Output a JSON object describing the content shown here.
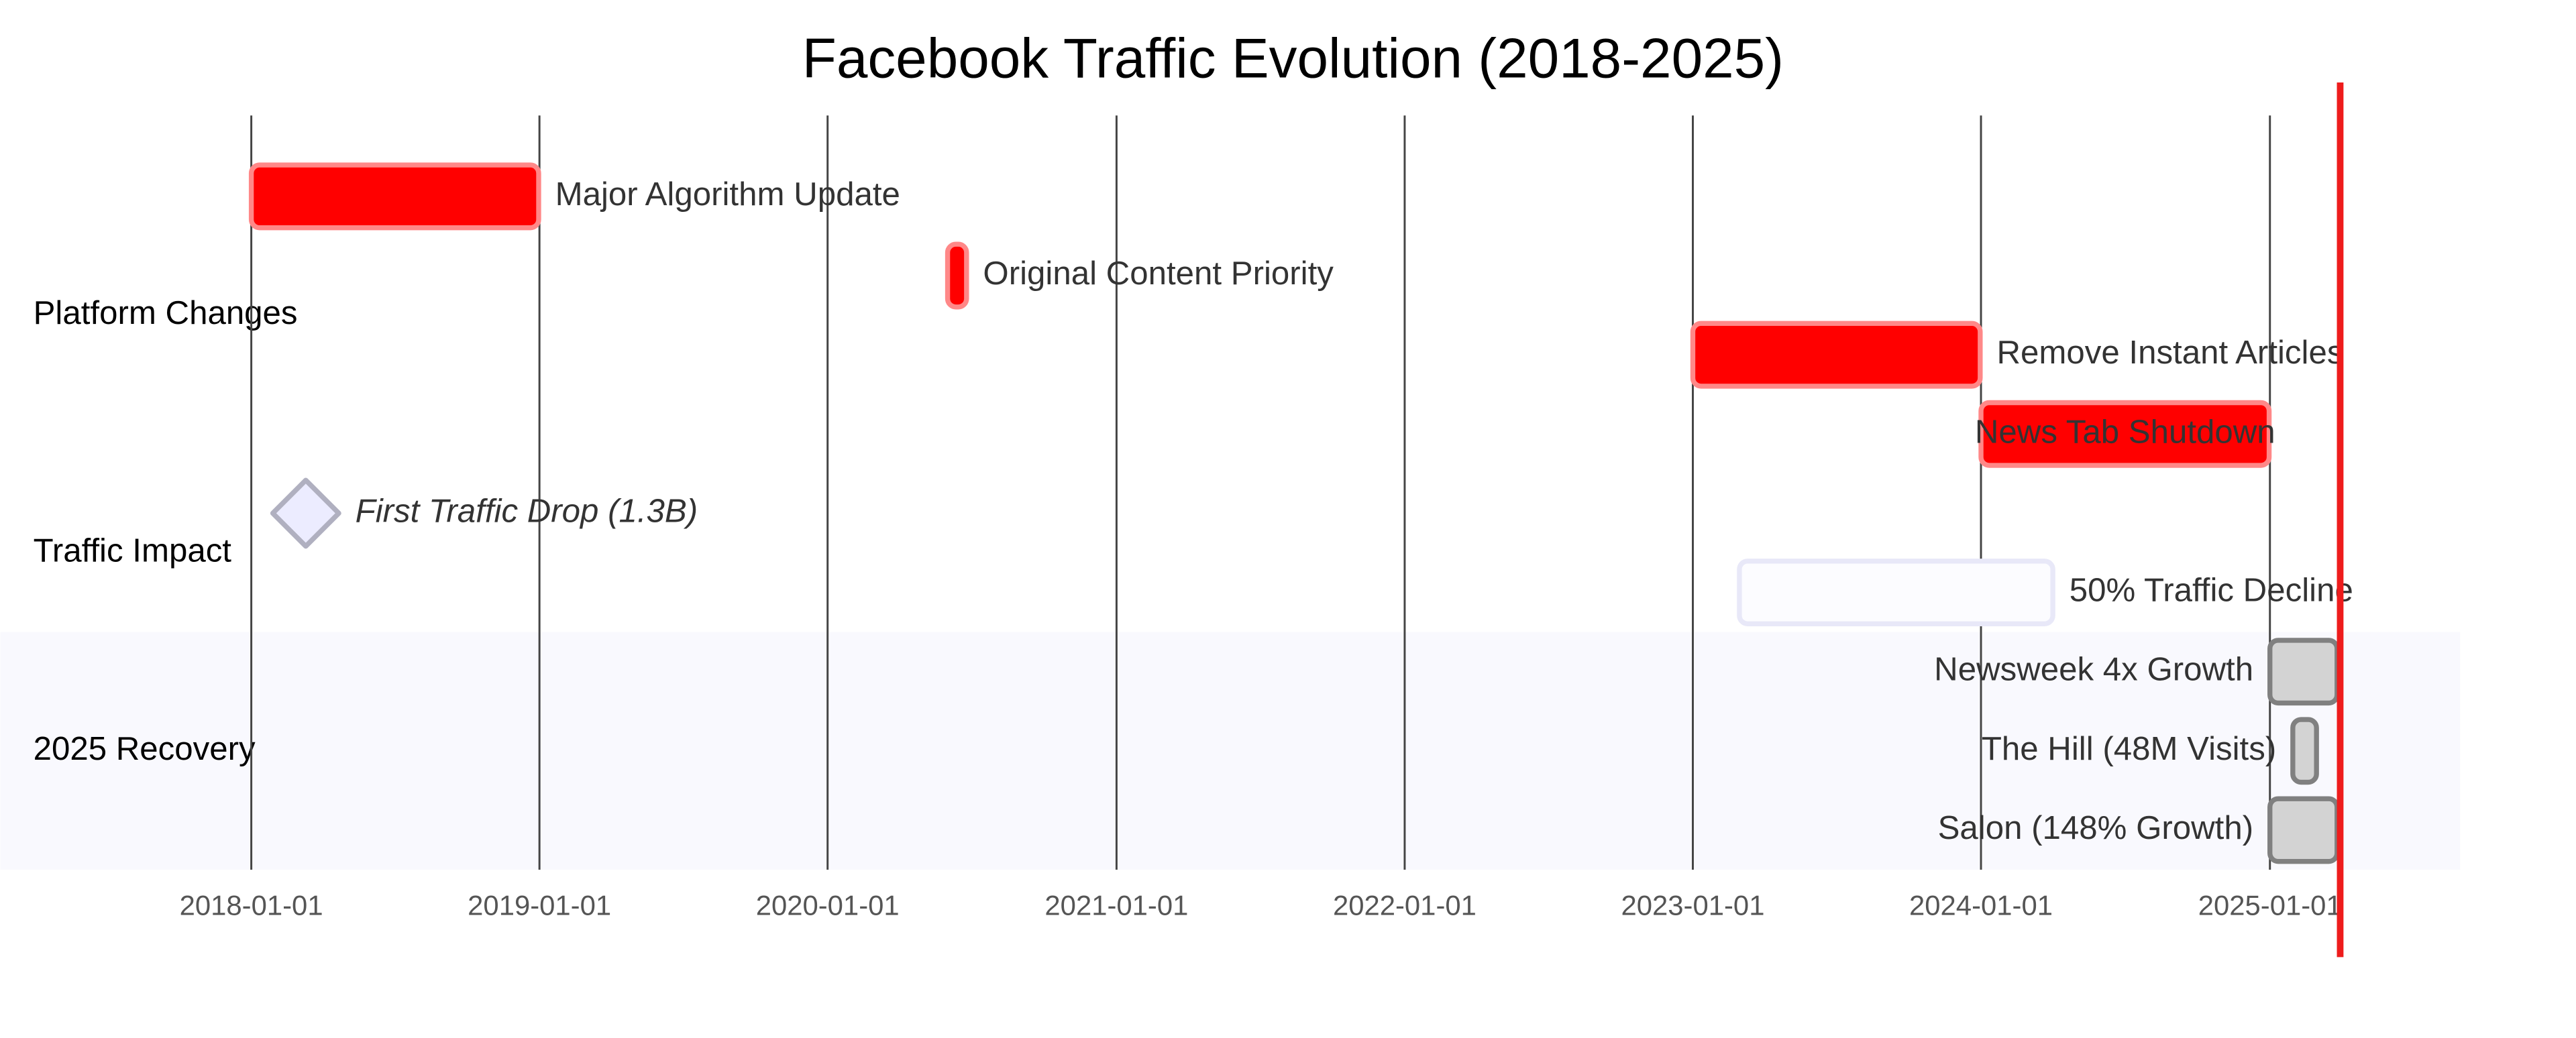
{
  "chart_data": {
    "type": "gantt",
    "title": "Facebook Traffic Evolution (2018-2025)",
    "xlim": [
      "2017-02-17",
      "2025-08-30"
    ],
    "xticks": [
      "2018-01-01",
      "2019-01-01",
      "2020-01-01",
      "2021-01-01",
      "2022-01-01",
      "2023-01-01",
      "2024-01-01",
      "2025-01-01"
    ],
    "today": "2025-03-31",
    "today_color": "#ee1c1c",
    "sections": [
      {
        "name": "Platform Changes",
        "color": "#ffffff",
        "tasks": [
          {
            "name": "Major Algorithm Update",
            "start": "2018-01-01",
            "end": "2018-12-31",
            "status": "crit"
          },
          {
            "name": "Original Content Priority",
            "start": "2020-06-01",
            "end": "2020-06-25",
            "status": "crit"
          },
          {
            "name": "Remove Instant Articles",
            "start": "2023-01-01",
            "end": "2023-12-31",
            "status": "crit"
          },
          {
            "name": "News Tab Shutdown",
            "start": "2024-01-01",
            "end": "2024-12-31",
            "status": "crit"
          }
        ]
      },
      {
        "name": "Traffic Impact",
        "color": "#ffffff",
        "tasks": [
          {
            "name": "First Traffic Drop (1.3B)",
            "start": "2018-03-11",
            "end": "2018-03-11",
            "status": "milestone"
          },
          {
            "name": "50% Traffic Decline",
            "start": "2023-03-01",
            "end": "2024-04-01",
            "status": "active"
          }
        ]
      },
      {
        "name": "2025 Recovery",
        "color": "#f9f9fe",
        "tasks": [
          {
            "name": "Newsweek 4x Growth",
            "start": "2025-01-01",
            "end": "2025-03-27",
            "status": "done"
          },
          {
            "name": "The Hill (48M Visits)",
            "start": "2025-01-30",
            "end": "2025-03-01",
            "status": "done"
          },
          {
            "name": "Salon (148% Growth)",
            "start": "2025-01-01",
            "end": "2025-03-27",
            "status": "done"
          }
        ]
      }
    ]
  }
}
